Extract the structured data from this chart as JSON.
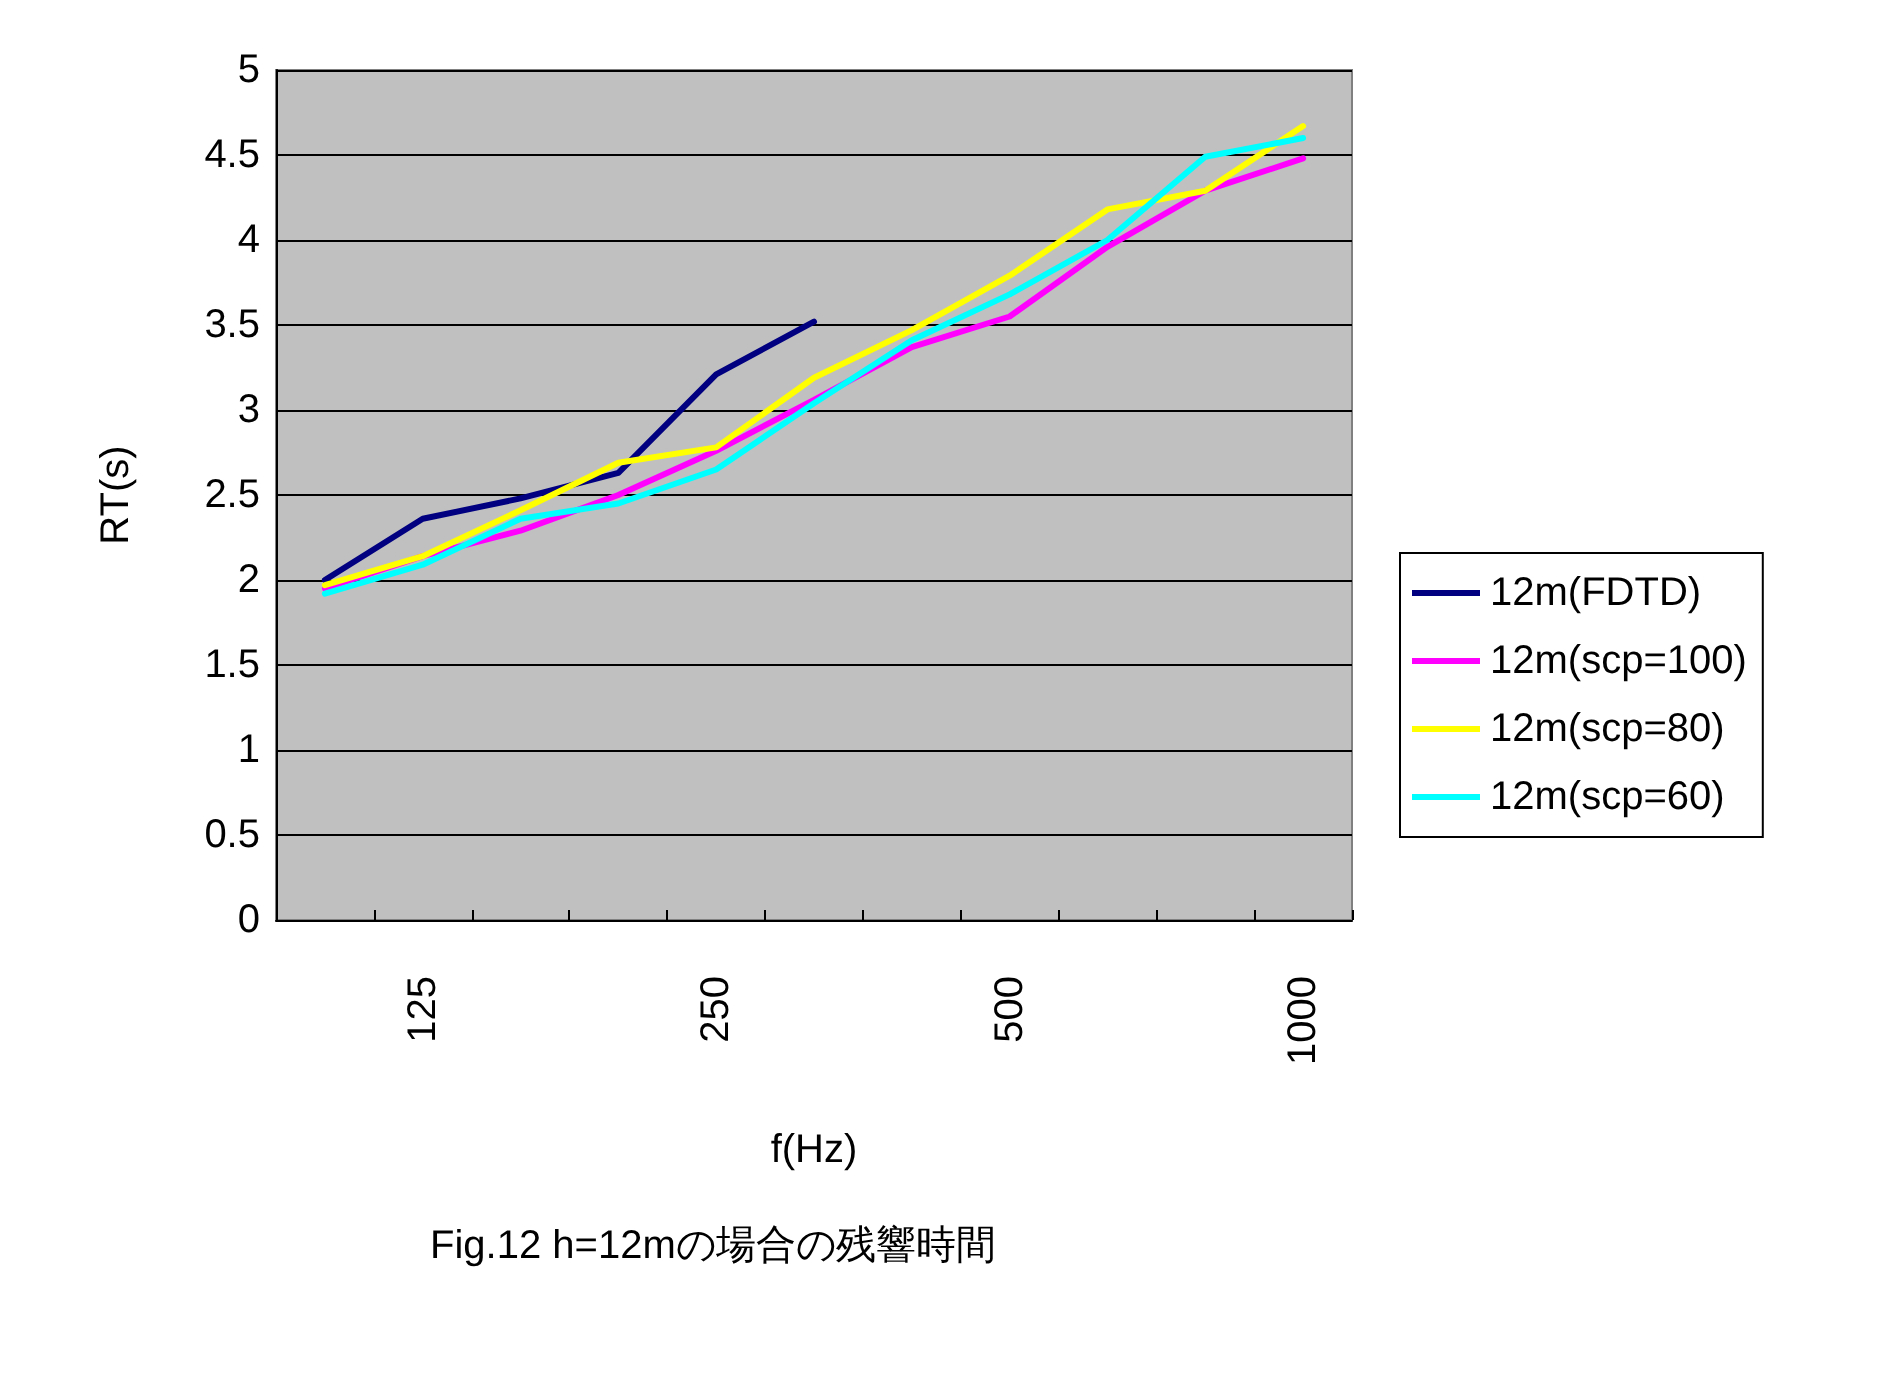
{
  "chart_data": {
    "type": "line",
    "title": "Fig.12 h=12mの場合の残響時間",
    "xlabel": "f(Hz)",
    "ylabel": "RT(s)",
    "categories": [
      null,
      "125",
      null,
      null,
      "250",
      null,
      null,
      "500",
      null,
      null,
      "1000"
    ],
    "series": [
      {
        "name": "12m(FDTD)",
        "color": "#000080",
        "values": [
          2.0,
          2.36,
          2.48,
          2.63,
          3.21,
          3.52,
          null,
          null,
          null,
          null,
          null
        ]
      },
      {
        "name": "12m(scp=100)",
        "color": "#ff00ff",
        "values": [
          1.95,
          2.14,
          2.29,
          2.5,
          2.76,
          3.06,
          3.37,
          3.55,
          3.96,
          4.29,
          4.48
        ]
      },
      {
        "name": "12m(scp=80)",
        "color": "#ffff00",
        "values": [
          1.97,
          2.14,
          2.41,
          2.69,
          2.78,
          3.19,
          3.47,
          3.79,
          4.18,
          4.29,
          4.67
        ]
      },
      {
        "name": "12m(scp=60)",
        "color": "#00ffff",
        "values": [
          1.92,
          2.09,
          2.36,
          2.45,
          2.65,
          3.04,
          3.41,
          3.68,
          4.0,
          4.49,
          4.6
        ]
      }
    ],
    "ylim": [
      0,
      5
    ],
    "yticks": [
      0,
      0.5,
      1,
      1.5,
      2,
      2.5,
      3,
      3.5,
      4,
      4.5,
      5
    ],
    "grid": "y",
    "legend": "right",
    "marker": "none",
    "line_style": "solid"
  }
}
